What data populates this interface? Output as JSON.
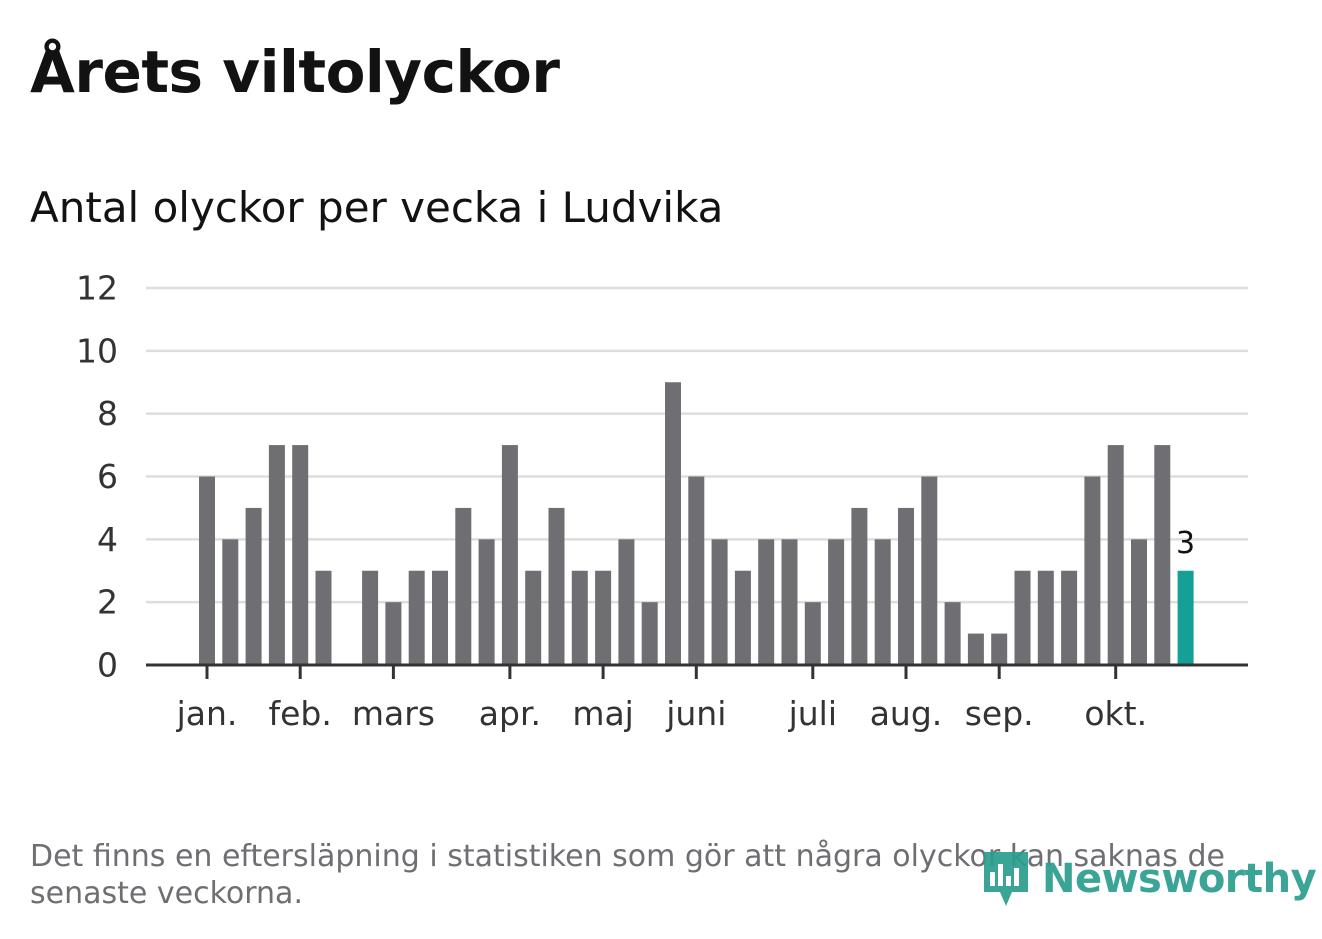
{
  "title": "Årets viltolyckor",
  "subtitle": "Antal olyckor per vecka i Ludvika",
  "footnote": "Det finns en eftersläpning i statistiken som gör att några olyckor kan saknas de senaste veckorna.",
  "brand": {
    "name": "Newsworthy",
    "icon": "newsworthy-logo-icon",
    "color": "#2a9d8f"
  },
  "colors": {
    "bar": "#6f6e73",
    "highlight": "#14a096",
    "grid": "#dddddd",
    "axis": "#333333",
    "text": "#333333"
  },
  "chart_data": {
    "type": "bar",
    "title": "Antal olyckor per vecka i Ludvika",
    "xlabel": "",
    "ylabel": "",
    "ylim": [
      0,
      12
    ],
    "yticks": [
      0,
      2,
      4,
      6,
      8,
      10,
      12
    ],
    "grid": true,
    "weeks": [
      1,
      2,
      3,
      4,
      5,
      6,
      7,
      8,
      9,
      10,
      11,
      12,
      13,
      14,
      15,
      16,
      17,
      18,
      19,
      20,
      21,
      22,
      23,
      24,
      25,
      26,
      27,
      28,
      29,
      30,
      31,
      32,
      33,
      34,
      35,
      36,
      37,
      38,
      39,
      40,
      41,
      42,
      43
    ],
    "values": [
      6,
      4,
      5,
      7,
      7,
      3,
      0,
      3,
      2,
      3,
      3,
      5,
      4,
      7,
      3,
      5,
      3,
      3,
      4,
      2,
      9,
      6,
      4,
      3,
      4,
      4,
      2,
      4,
      5,
      4,
      5,
      6,
      2,
      1,
      1,
      3,
      3,
      3,
      6,
      7,
      4,
      7,
      3
    ],
    "highlight_last": true,
    "last_value_label": "3",
    "month_labels": [
      {
        "label": "jan.",
        "week": 1
      },
      {
        "label": "feb.",
        "week": 5
      },
      {
        "label": "mars",
        "week": 9
      },
      {
        "label": "apr.",
        "week": 14
      },
      {
        "label": "maj",
        "week": 18
      },
      {
        "label": "juni",
        "week": 22
      },
      {
        "label": "juli",
        "week": 27
      },
      {
        "label": "aug.",
        "week": 31
      },
      {
        "label": "sep.",
        "week": 35
      },
      {
        "label": "okt.",
        "week": 40
      }
    ]
  }
}
